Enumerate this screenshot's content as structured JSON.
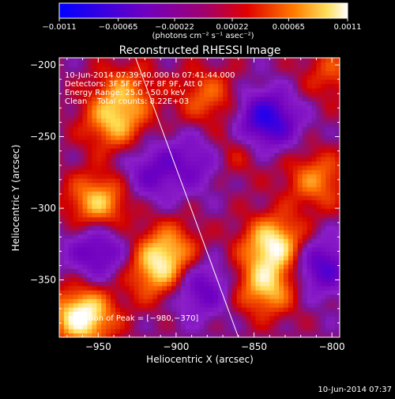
{
  "chart_data": {
    "type": "heatmap",
    "title": "Reconstructed RHESSI Image",
    "xlabel": "Heliocentric X (arcsec)",
    "ylabel": "Heliocentric Y (arcsec)",
    "xlim": [
      -975,
      -795
    ],
    "ylim": [
      -390,
      -195
    ],
    "x_ticks": [
      -950,
      -900,
      -850,
      -800
    ],
    "x_tick_labels": [
      "−950",
      "−900",
      "−850",
      "−800"
    ],
    "y_ticks": [
      -350,
      -300,
      -250,
      -200
    ],
    "y_tick_labels": [
      "−350",
      "−300",
      "−250",
      "−200"
    ],
    "colorbar": {
      "min": -0.0011,
      "max": 0.0011,
      "ticks": [
        -0.0011,
        -0.00065,
        -0.00022,
        0.00022,
        0.00065,
        0.0011
      ],
      "tick_labels": [
        "−0.0011",
        "−0.00065",
        "−0.00022",
        "0.00022",
        "0.00065",
        "0.0011"
      ],
      "unit_label": "(photons cm⁻² s⁻¹ asec⁻²)",
      "colors": [
        "#0000ff",
        "#8000a0",
        "#c00000",
        "#ff6000",
        "#ffd000",
        "#ffffff"
      ]
    },
    "annotations": [
      "10-Jun-2014 07:39:40.000 to 07:41:44.000",
      "Detectors: 3F 5F 6F 7F 8F 9F, Att 0",
      "Energy Range: 25.0 - 50.0 keV",
      "Clean    Total counts: 8.22E+03"
    ],
    "peak_label": "Position of Peak = [−980,−370]",
    "peak": [
      -980,
      -370
    ],
    "limb_line": [
      [
        -926,
        -195
      ],
      [
        -860,
        -390
      ]
    ],
    "sources": [
      {
        "x": -960,
        "y": -375,
        "level": 0.0011
      },
      {
        "x": -950,
        "y": -295,
        "level": 0.0008
      },
      {
        "x": -940,
        "y": -240,
        "level": 0.0007
      },
      {
        "x": -933,
        "y": -218,
        "level": 0.0005
      },
      {
        "x": -912,
        "y": -345,
        "level": 0.0007
      },
      {
        "x": -905,
        "y": -328,
        "level": 0.0006
      },
      {
        "x": -880,
        "y": -222,
        "level": 0.0005
      },
      {
        "x": -868,
        "y": -262,
        "level": 0.0005
      },
      {
        "x": -837,
        "y": -325,
        "level": 0.001
      },
      {
        "x": -842,
        "y": -355,
        "level": 0.0008
      },
      {
        "x": -810,
        "y": -280,
        "level": 0.0006
      },
      {
        "x": -800,
        "y": -205,
        "level": 0.0004
      }
    ],
    "sinks": [
      {
        "x": -842,
        "y": -238,
        "level": -0.0009
      },
      {
        "x": -950,
        "y": -330,
        "level": -0.0006
      },
      {
        "x": -882,
        "y": -265,
        "level": -0.0006
      },
      {
        "x": -808,
        "y": -340,
        "level": -0.0007
      },
      {
        "x": -885,
        "y": -355,
        "level": -0.0006
      },
      {
        "x": -915,
        "y": -275,
        "level": -0.0005
      }
    ]
  },
  "footer": {
    "timestamp": "10-Jun-2014 07:37"
  }
}
